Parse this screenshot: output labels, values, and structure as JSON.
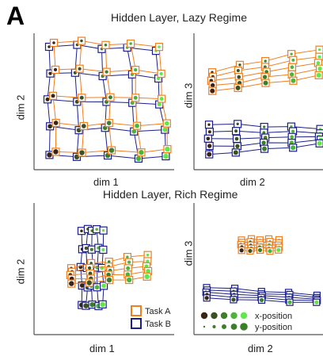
{
  "panel_label": "A",
  "sections": [
    {
      "title": "Hidden Layer, Lazy Regime"
    },
    {
      "title": "Hidden Layer, Rich Regime"
    }
  ],
  "legend": {
    "task_a": "Task A",
    "task_b": "Task B",
    "x_position": "x-position",
    "y_position": "y-position"
  },
  "colors": {
    "task_a": "#f07f1f",
    "task_b": "#1c1f8a",
    "dark_point": "#3a2418",
    "mid_point": "#3e7d2a",
    "light_point": "#5ee84a"
  },
  "chart_data": [
    {
      "type": "scatter",
      "panel": "lazy-dim1-dim2",
      "section": "Hidden Layer, Lazy Regime",
      "xlabel": "dim 1",
      "ylabel": "dim 2",
      "grid": false,
      "series": [
        {
          "name": "Task A",
          "shape": "5x5 grid of hidden states"
        },
        {
          "name": "Task B",
          "shape": "5x5 grid of hidden states"
        }
      ]
    },
    {
      "type": "scatter",
      "panel": "lazy-dim2-dim3",
      "section": "Hidden Layer, Lazy Regime",
      "xlabel": "dim 2",
      "ylabel": "dim 3",
      "grid": false,
      "series": [
        {
          "name": "Task A",
          "shape": "5x5 grid of hidden states"
        },
        {
          "name": "Task B",
          "shape": "5x5 grid of hidden states"
        }
      ]
    },
    {
      "type": "scatter",
      "panel": "rich-dim1-dim2",
      "section": "Hidden Layer, Rich Regime",
      "xlabel": "dim 1",
      "ylabel": "dim 2",
      "grid": false,
      "series": [
        {
          "name": "Task A",
          "shape": "5x5 grid of hidden states"
        },
        {
          "name": "Task B",
          "shape": "5x5 grid of hidden states"
        }
      ]
    },
    {
      "type": "scatter",
      "panel": "rich-dim2-dim3",
      "section": "Hidden Layer, Rich Regime",
      "xlabel": "dim 2",
      "ylabel": "dim 3",
      "grid": false,
      "series": [
        {
          "name": "Task A",
          "shape": "5x5 grid of hidden states"
        },
        {
          "name": "Task B",
          "shape": "5x5 grid of hidden states"
        }
      ]
    }
  ]
}
